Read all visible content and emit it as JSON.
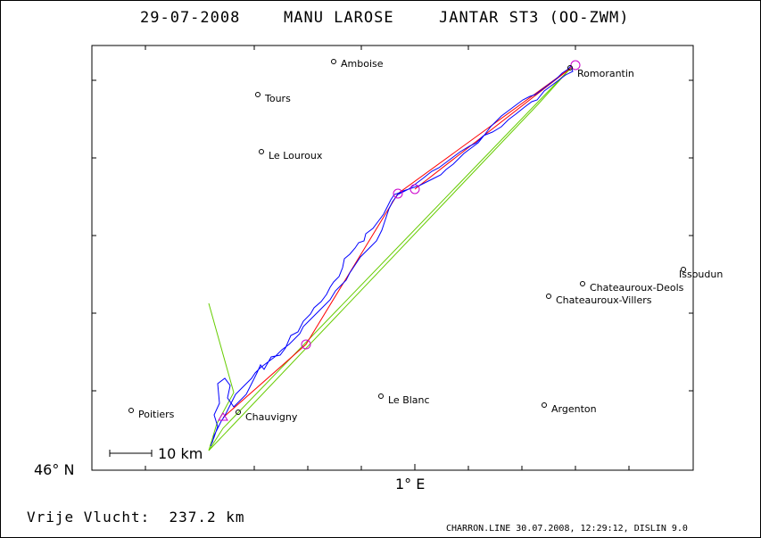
{
  "header": {
    "date": "29-07-2008",
    "pilot": "MANU LAROSE",
    "glider": "JANTAR ST3 (OO-ZWM)"
  },
  "axes": {
    "lat_label": "46° N",
    "lon_label": "1° E"
  },
  "scale_label": "10 km",
  "towns": [
    {
      "name": "Amboise"
    },
    {
      "name": "Tours"
    },
    {
      "name": "Le Louroux"
    },
    {
      "name": "Romorantin"
    },
    {
      "name": "Issoudun"
    },
    {
      "name": "Chateauroux-Deols"
    },
    {
      "name": "Chateauroux-Villers"
    },
    {
      "name": "Le Blanc"
    },
    {
      "name": "Argenton"
    },
    {
      "name": "Poitiers"
    },
    {
      "name": "Chauvigny"
    }
  ],
  "colors": {
    "track": "#0000ff",
    "task_line": "#ff0000",
    "sector_line": "#66cc00",
    "turnpoint": "#cc00cc"
  },
  "footer": {
    "distance": "Vrije Vlucht:  237.2 km",
    "credit": "CHARRON.LINE 30.07.2008, 12:29:12, DISLIN 9.0"
  }
}
